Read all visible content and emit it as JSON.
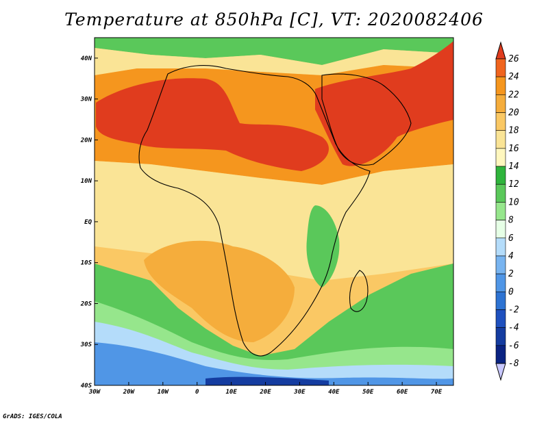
{
  "title": "Temperature at 850hPa [C], VT: 2020082406",
  "credit": "GrADS: IGES/COLA",
  "map": {
    "region": "Africa",
    "variable": "Temperature at 850hPa",
    "units": "C",
    "lon_range": [
      -30,
      75
    ],
    "lat_range": [
      -40,
      45
    ],
    "lon_ticks": [
      "30W",
      "20W",
      "10W",
      "0",
      "10E",
      "20E",
      "30E",
      "40E",
      "50E",
      "60E",
      "70E"
    ],
    "lat_ticks": [
      "40N",
      "30N",
      "20N",
      "10N",
      "EQ",
      "10S",
      "20S",
      "30S",
      "40S"
    ],
    "features": [
      {
        "region": "Sahara / Arabian Peninsula",
        "range": "22-26"
      },
      {
        "region": "Southern Africa interior",
        "range": "18-20"
      },
      {
        "region": "Southern Ocean",
        "range": "-8 to 6"
      }
    ]
  },
  "colorbar": {
    "labels": [
      "26",
      "24",
      "22",
      "20",
      "18",
      "16",
      "14",
      "12",
      "10",
      "8",
      "6",
      "4",
      "2",
      "0",
      "-2",
      "-4",
      "-6",
      "-8"
    ],
    "colors": [
      "#e03c1e",
      "#f0641e",
      "#f5961e",
      "#f5ad3c",
      "#fac864",
      "#fae496",
      "#fff7be",
      "#2fb43c",
      "#5ac85a",
      "#96e68c",
      "#e6ffe6",
      "#b4dcfa",
      "#78b4f0",
      "#5096e6",
      "#2d73d2",
      "#1e50be",
      "#143ca0",
      "#0a2382",
      "#c8c8ff"
    ]
  },
  "colors": {
    "land_border": "#000000",
    "background": "#ffffff"
  }
}
